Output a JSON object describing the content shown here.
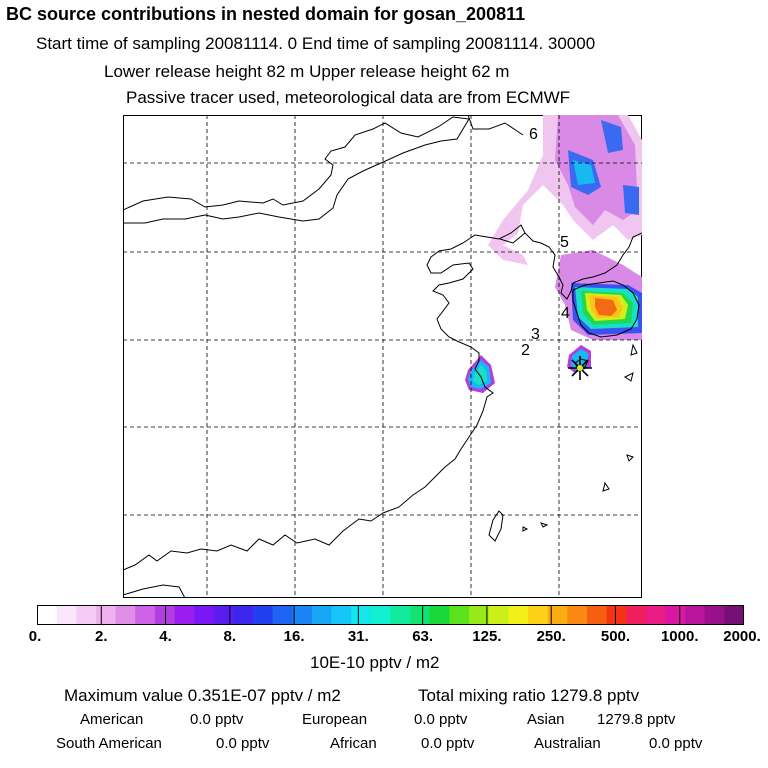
{
  "header": {
    "title": "BC  source contributions in nested domain for gosan_200811",
    "sampling_line": "Start time of sampling 20081114.     0     End time of sampling 20081114. 30000",
    "release_line": "Lower release height   82 m          Upper release height   62 m",
    "info_line": "Passive tracer used, meteorological data are from ECMWF"
  },
  "map": {
    "point_labels": [
      "6",
      "5",
      "4",
      "3",
      "2"
    ],
    "receptor_marker": "star-marker"
  },
  "colorbar": {
    "colors": [
      "#ffffff",
      "#fbe6fb",
      "#f6ccf6",
      "#eeb0ee",
      "#e08de6",
      "#cf63e6",
      "#b33ee0",
      "#9a1ef0",
      "#7b17f2",
      "#5b1cf0",
      "#3d26ee",
      "#2340f0",
      "#1e63f2",
      "#1a84f4",
      "#18a6f6",
      "#17c6f6",
      "#14e6ee",
      "#12f0d2",
      "#12ea9e",
      "#14e270",
      "#1ad838",
      "#5ce21c",
      "#96ea1a",
      "#caf018",
      "#f2f018",
      "#fcd216",
      "#fcac14",
      "#fa8a12",
      "#f65e12",
      "#f43412",
      "#f0205c",
      "#ea1c86",
      "#d818a2",
      "#b8149c",
      "#98108a",
      "#741076"
    ],
    "tick_labels": [
      "0.",
      "2.",
      "4.",
      "8.",
      "16.",
      "31.",
      "63.",
      "125.",
      "250.",
      "500.",
      "1000.",
      "2000."
    ],
    "unit": "10E-10 pptv / m2"
  },
  "stats": {
    "maximum_label": "Maximum value  0.351E-07 pptv / m2",
    "total_label": "Total mixing ratio     1279.8 pptv",
    "regions": [
      {
        "name": "American",
        "value": "0.0 pptv"
      },
      {
        "name": "European",
        "value": "0.0 pptv"
      },
      {
        "name": "Asian",
        "value": "1279.8 pptv"
      },
      {
        "name": "South American",
        "value": "0.0 pptv"
      },
      {
        "name": "African",
        "value": "0.0 pptv"
      },
      {
        "name": "Australian",
        "value": "0.0 pptv"
      }
    ]
  }
}
